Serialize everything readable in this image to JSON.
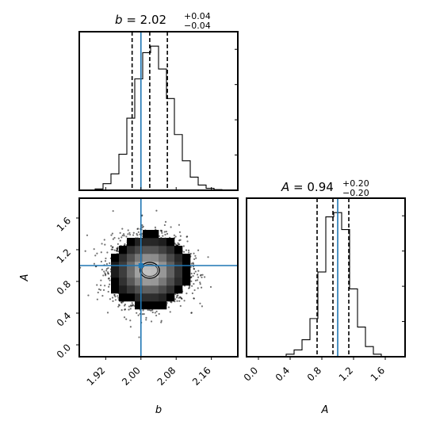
{
  "chart_data": {
    "type": "corner",
    "parameters": [
      "b",
      "A"
    ],
    "truths": {
      "b": 2.0,
      "A": 1.0
    },
    "truth_color": "#1f77b4",
    "hist_color": "#000000",
    "titles": [
      {
        "param": "b",
        "median": "2.02",
        "plus": "+0.04",
        "minus": "−0.04"
      },
      {
        "param": "A",
        "median": "0.94",
        "plus": "+0.20",
        "minus": "−0.20"
      }
    ],
    "marginal_b": {
      "xlim": [
        1.86,
        2.22
      ],
      "quantiles": [
        1.98,
        2.02,
        2.06
      ],
      "bin_edges": [
        1.86,
        1.878,
        1.896,
        1.914,
        1.932,
        1.95,
        1.968,
        1.986,
        2.004,
        2.022,
        2.04,
        2.058,
        2.076,
        2.094,
        2.112,
        2.13,
        2.148,
        2.166,
        2.184,
        2.202,
        2.22
      ],
      "counts": [
        0,
        0,
        2,
        10,
        25,
        55,
        110,
        170,
        210,
        220,
        185,
        140,
        85,
        45,
        20,
        8,
        3,
        1,
        0,
        0
      ]
    },
    "marginal_A": {
      "xlim": [
        -0.15,
        1.85
      ],
      "quantiles": [
        0.74,
        0.94,
        1.14
      ],
      "bin_edges": [
        -0.15,
        -0.05,
        0.05,
        0.15,
        0.25,
        0.35,
        0.45,
        0.55,
        0.65,
        0.75,
        0.85,
        0.95,
        1.05,
        1.15,
        1.25,
        1.35,
        1.45,
        1.55,
        1.65,
        1.75,
        1.85
      ],
      "counts": [
        0,
        0,
        0,
        0,
        0,
        3,
        8,
        20,
        45,
        100,
        165,
        170,
        150,
        80,
        35,
        12,
        3,
        0,
        0,
        0
      ]
    },
    "joint": {
      "xlim": [
        1.86,
        2.22
      ],
      "ylim": [
        -0.15,
        1.85
      ],
      "center": [
        2.02,
        0.94
      ],
      "sigma": [
        0.04,
        0.2
      ]
    },
    "x_ticks_b": [
      "1.92",
      "2.00",
      "2.08",
      "2.16"
    ],
    "x_ticks_A": [
      "0.0",
      "0.4",
      "0.8",
      "1.2",
      "1.6"
    ],
    "y_ticks_A": [
      "0.0",
      "0.4",
      "0.8",
      "1.2",
      "1.6"
    ],
    "xlabel_b": "b",
    "xlabel_A": "A",
    "ylabel_A": "A"
  }
}
